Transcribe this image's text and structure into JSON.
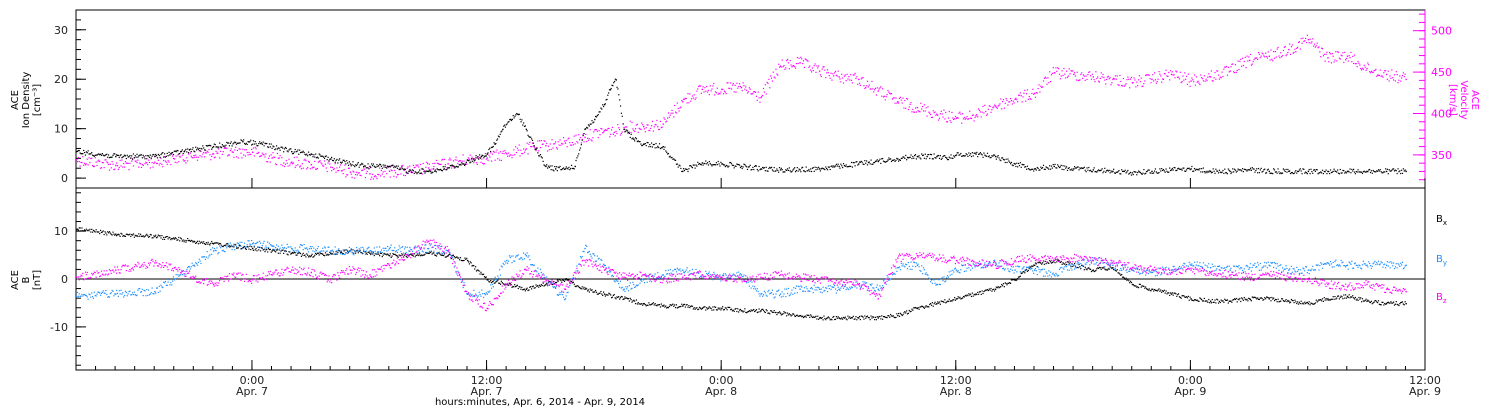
{
  "colors": {
    "black": "#000000",
    "magenta": "#ff00ff",
    "blue": "#1e90ff"
  },
  "xlabel": "hours:minutes, Apr.  6, 2014 - Apr.  9, 2014",
  "chart_data": [
    {
      "type": "scatter",
      "panel": "top",
      "ylabel_left": [
        "ACE",
        "Ion Density",
        "[cm⁻³]"
      ],
      "ylabel_right": [
        "ACE",
        "Velocity",
        "[km/s]"
      ],
      "ylim_left": [
        -2,
        34
      ],
      "ylim_right": [
        310,
        525
      ],
      "left_ticks": [
        "0",
        "10",
        "20",
        "30"
      ],
      "left_tick_values": [
        0,
        10,
        20,
        30
      ],
      "right_ticks": [
        "350",
        "400",
        "450",
        "500"
      ],
      "right_tick_values": [
        350,
        400,
        450,
        500
      ],
      "x_unit": "hours since Apr. 6 00:00",
      "xlim": [
        15,
        84
      ],
      "series": [
        {
          "name": "Ion Density",
          "axis": "left",
          "color": "#000000",
          "x": [
            15.0,
            17,
            19,
            20.5,
            22,
            23.5,
            24.5,
            26,
            27,
            28,
            29,
            30,
            31,
            32,
            33,
            33.8,
            34.3,
            34.8,
            35.3,
            35.7,
            36,
            36.4,
            36.8,
            37.2,
            37.6,
            38,
            38.5,
            39,
            39.5,
            40,
            40.5,
            41,
            41.5,
            42,
            42.3,
            42.6,
            43,
            43.5,
            44,
            45,
            46,
            47,
            48,
            49,
            50,
            51,
            52,
            53,
            54,
            55,
            55.5,
            56,
            56.5,
            57,
            57.5,
            58,
            58.5,
            59,
            59.5,
            60,
            61,
            62,
            63,
            64,
            65,
            66,
            67,
            68,
            69,
            70,
            71,
            72,
            73,
            74,
            75,
            76,
            77,
            78,
            79,
            80,
            81,
            82,
            83
          ],
          "y": [
            5.5,
            4.5,
            4.5,
            5.5,
            6.5,
            7.5,
            7.0,
            5.5,
            5.0,
            4.0,
            3.0,
            2.5,
            2.5,
            1.5,
            1.5,
            2.0,
            2.5,
            3.0,
            4.0,
            4.5,
            5.0,
            7.0,
            10.0,
            12.0,
            13.0,
            10.0,
            6.0,
            2.5,
            2.0,
            2.0,
            2.5,
            10.0,
            12.0,
            15.0,
            18.0,
            20.0,
            10.0,
            8.0,
            7.0,
            6.5,
            1.5,
            3.2,
            3.0,
            2.5,
            2.0,
            1.8,
            1.8,
            2.0,
            2.5,
            3.0,
            3.3,
            3.5,
            3.8,
            4.0,
            4.3,
            4.5,
            4.5,
            4.5,
            4.2,
            4.8,
            5.0,
            4.5,
            3.0,
            2.0,
            2.5,
            2.0,
            1.8,
            1.5,
            1.2,
            1.5,
            1.8,
            2.0,
            1.5,
            1.5,
            1.8,
            1.5,
            1.5,
            1.5,
            1.5,
            1.5,
            1.5,
            1.5,
            1.5
          ]
        },
        {
          "name": "Velocity",
          "axis": "right",
          "color": "#ff00ff",
          "x": [
            15.0,
            17,
            19,
            20,
            21,
            22,
            23,
            24,
            25,
            26,
            27,
            28,
            29,
            30,
            31,
            32,
            33,
            34,
            35,
            36,
            37,
            38,
            39,
            40,
            41,
            42,
            42.5,
            43,
            44,
            45,
            46,
            47,
            48,
            49,
            50,
            51,
            52,
            53,
            54,
            55,
            56,
            57,
            58,
            59,
            60,
            61,
            62,
            63,
            64,
            65,
            66,
            67,
            68,
            69,
            70,
            71,
            72,
            73,
            74,
            75,
            76,
            77,
            78,
            79,
            80,
            81,
            82,
            83
          ],
          "y": [
            345,
            338,
            342,
            346,
            350,
            352,
            354,
            354,
            347,
            342,
            339,
            336,
            330,
            328,
            331,
            331,
            335,
            340,
            345,
            347,
            352,
            358,
            362,
            365,
            372,
            380,
            378,
            384,
            385,
            388,
            415,
            430,
            430,
            432,
            420,
            458,
            462,
            452,
            445,
            442,
            428,
            415,
            408,
            400,
            395,
            398,
            410,
            418,
            425,
            450,
            448,
            445,
            442,
            438,
            442,
            448,
            440,
            445,
            452,
            465,
            470,
            478,
            490,
            468,
            470,
            455,
            448,
            442
          ]
        }
      ]
    },
    {
      "type": "scatter",
      "panel": "bottom",
      "ylabel_left": [
        "ACE",
        "B",
        "[nT]"
      ],
      "ylim": [
        -19,
        19
      ],
      "left_ticks": [
        "-10",
        "0",
        "10"
      ],
      "left_tick_values": [
        -10,
        0,
        10
      ],
      "zero_line": true,
      "legend": [
        "Bx",
        "By",
        "Bz"
      ],
      "legend_position": "right",
      "x_unit": "hours since Apr. 6 00:00",
      "xlim": [
        15,
        84
      ],
      "series": [
        {
          "name": "Bx",
          "color": "#000000",
          "x": [
            15.0,
            17,
            19,
            20,
            21,
            22,
            23,
            24,
            25,
            26,
            27,
            28,
            29,
            30,
            31,
            32,
            33,
            34,
            35,
            36,
            37,
            38,
            39,
            40,
            41,
            42,
            43,
            44,
            45,
            46,
            47,
            48,
            49,
            50,
            51,
            52,
            53,
            54,
            55,
            56,
            57,
            58,
            59,
            60,
            61,
            62,
            63,
            64,
            65,
            66,
            67,
            68,
            69,
            70,
            71,
            72,
            73,
            74,
            75,
            76,
            77,
            78,
            79,
            80,
            81,
            82,
            83
          ],
          "y": [
            10.5,
            9.5,
            9.0,
            8.5,
            8.0,
            7.5,
            7.0,
            6.5,
            6.0,
            5.5,
            5.0,
            5.5,
            6.0,
            5.5,
            5.0,
            5.0,
            5.5,
            5.0,
            4.0,
            0.0,
            -1.0,
            -2.0,
            -1.0,
            0.0,
            -2.0,
            -3.0,
            -4.0,
            -5.0,
            -5.5,
            -5.5,
            -6.0,
            -6.0,
            -6.5,
            -6.5,
            -7.0,
            -7.5,
            -8.0,
            -8.0,
            -8.0,
            -8.0,
            -7.5,
            -6.0,
            -5.0,
            -4.0,
            -3.0,
            -2.0,
            0.0,
            3.0,
            4.0,
            3.0,
            2.0,
            2.5,
            -1.0,
            -2.0,
            -3.0,
            -4.0,
            -4.5,
            -4.5,
            -4.0,
            -4.0,
            -4.5,
            -5.0,
            -4.0,
            -3.5,
            -4.5,
            -5.0,
            -5.0
          ]
        },
        {
          "name": "By",
          "color": "#1e90ff",
          "x": [
            15.0,
            17,
            19,
            20,
            21,
            22,
            23,
            24,
            25,
            26,
            27,
            28,
            29,
            30,
            31,
            32,
            33,
            34,
            35,
            36,
            37,
            38,
            39,
            40,
            41,
            42,
            43,
            44,
            45,
            46,
            47,
            48,
            49,
            50,
            51,
            52,
            53,
            54,
            55,
            56,
            57,
            58,
            59,
            60,
            61,
            62,
            63,
            64,
            65,
            66,
            67,
            68,
            69,
            70,
            71,
            72,
            73,
            74,
            75,
            76,
            77,
            78,
            79,
            80,
            81,
            82,
            83
          ],
          "y": [
            -3.5,
            -3.0,
            -2.5,
            0.0,
            3.0,
            6.0,
            7.0,
            7.5,
            7.0,
            6.5,
            6.5,
            6.0,
            6.0,
            6.0,
            6.5,
            6.0,
            6.5,
            6.0,
            -3.0,
            -3.0,
            4.0,
            5.0,
            0.0,
            -4.0,
            6.5,
            3.0,
            -2.0,
            0.0,
            1.0,
            2.0,
            1.0,
            0.5,
            1.0,
            -3.0,
            -3.0,
            -2.0,
            -2.0,
            -2.0,
            -1.0,
            -2.0,
            2.5,
            3.0,
            -1.0,
            2.0,
            3.0,
            3.5,
            2.0,
            2.0,
            1.0,
            3.0,
            4.0,
            3.0,
            2.0,
            1.5,
            2.0,
            3.0,
            2.5,
            2.0,
            2.5,
            3.0,
            2.0,
            2.0,
            3.5,
            3.0,
            3.0,
            3.0,
            3.0
          ]
        },
        {
          "name": "Bz",
          "color": "#ff00ff",
          "x": [
            15.0,
            17,
            19,
            20,
            21,
            22,
            23,
            24,
            25,
            26,
            27,
            28,
            29,
            30,
            31,
            32,
            33,
            34,
            35,
            36,
            37,
            38,
            39,
            40,
            41,
            42,
            43,
            44,
            45,
            46,
            47,
            48,
            49,
            50,
            51,
            52,
            53,
            54,
            55,
            56,
            57,
            58,
            59,
            60,
            61,
            62,
            63,
            64,
            65,
            66,
            67,
            68,
            69,
            70,
            71,
            72,
            73,
            74,
            75,
            76,
            77,
            78,
            79,
            80,
            81,
            82,
            83
          ],
          "y": [
            0.5,
            2.0,
            3.5,
            2.5,
            0.5,
            -1.0,
            1.0,
            0.0,
            1.0,
            2.0,
            1.5,
            0.0,
            2.0,
            1.0,
            3.0,
            5.0,
            8.0,
            6.0,
            -3.0,
            -6.0,
            -1.0,
            2.0,
            0.0,
            -2.0,
            4.0,
            2.0,
            0.5,
            1.0,
            0.0,
            0.5,
            1.0,
            0.5,
            0.0,
            0.5,
            1.0,
            0.5,
            0.0,
            -0.5,
            -1.0,
            -4.0,
            4.5,
            5.0,
            4.5,
            4.0,
            3.5,
            3.0,
            4.0,
            4.5,
            4.0,
            4.5,
            4.0,
            3.5,
            2.5,
            2.0,
            1.5,
            2.0,
            1.5,
            1.0,
            0.5,
            1.0,
            0.5,
            0.0,
            -1.0,
            -1.5,
            -1.0,
            -2.0,
            -2.5
          ]
        }
      ]
    }
  ],
  "x_axis": {
    "ticks": [
      {
        "x": 24,
        "line1": "0:00",
        "line2": "Apr. 7"
      },
      {
        "x": 36,
        "line1": "12:00",
        "line2": "Apr. 7"
      },
      {
        "x": 48,
        "line1": "0:00",
        "line2": "Apr. 8"
      },
      {
        "x": 60,
        "line1": "12:00",
        "line2": "Apr. 8"
      },
      {
        "x": 72,
        "line1": "0:00",
        "line2": "Apr. 9"
      },
      {
        "x": 84,
        "line1": "12:00",
        "line2": "Apr. 9"
      }
    ]
  }
}
